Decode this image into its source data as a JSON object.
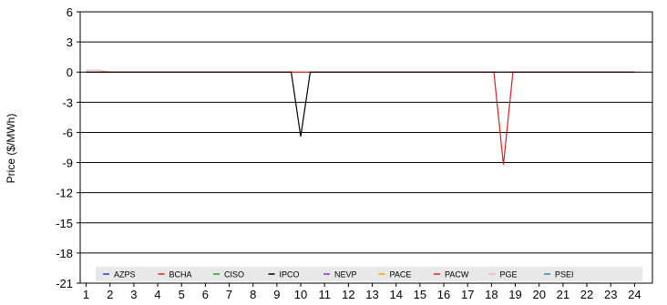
{
  "chart_data": {
    "type": "line",
    "title": "",
    "xlabel": "",
    "ylabel": "Price ($/MWh)",
    "x": [
      1,
      2,
      3,
      4,
      5,
      6,
      7,
      8,
      9,
      10,
      11,
      12,
      13,
      14,
      15,
      16,
      17,
      18,
      19,
      20,
      21,
      22,
      23,
      24
    ],
    "xticks": [
      "1",
      "2",
      "3",
      "4",
      "5",
      "6",
      "7",
      "8",
      "9",
      "10",
      "11",
      "12",
      "13",
      "14",
      "15",
      "16",
      "17",
      "18",
      "19",
      "20",
      "21",
      "22",
      "23",
      "24"
    ],
    "ylim": [
      -21,
      6
    ],
    "yticks": [
      6,
      3,
      0,
      -3,
      -6,
      -9,
      -12,
      -15,
      -18,
      -21
    ],
    "ytick_labels": [
      "6",
      "3",
      "0",
      "-3",
      "-6",
      "-9",
      "-12",
      "-15",
      "-18",
      "-21"
    ],
    "grid": "horizontal",
    "legend_position": "bottom",
    "series": [
      {
        "name": "AZPS",
        "color": "#1f3fd1",
        "points": [
          [
            1,
            0
          ],
          [
            24,
            0
          ]
        ]
      },
      {
        "name": "BCHA",
        "color": "#e02020",
        "points": [
          [
            1,
            0
          ],
          [
            24,
            0
          ]
        ]
      },
      {
        "name": "CISO",
        "color": "#2e9a2e",
        "points": [
          [
            1,
            0
          ],
          [
            24,
            0
          ]
        ]
      },
      {
        "name": "IPCO",
        "color": "#000000",
        "points": [
          [
            1,
            0
          ],
          [
            9.6,
            0
          ],
          [
            10,
            -6.4
          ],
          [
            10.4,
            0
          ],
          [
            24,
            0
          ]
        ]
      },
      {
        "name": "NEVP",
        "color": "#8a2be2",
        "points": [
          [
            1,
            0
          ],
          [
            24,
            0
          ]
        ]
      },
      {
        "name": "PACE",
        "color": "#f0a500",
        "points": [
          [
            1,
            0
          ],
          [
            24,
            0
          ]
        ]
      },
      {
        "name": "PACW",
        "color": "#d62020",
        "points": [
          [
            1,
            0
          ],
          [
            18.1,
            0
          ],
          [
            18.5,
            -9.2
          ],
          [
            18.9,
            0
          ],
          [
            24,
            0
          ]
        ]
      },
      {
        "name": "PGE",
        "color": "#f4b6c2",
        "points": [
          [
            1,
            0.2
          ],
          [
            1.5,
            0.2
          ],
          [
            2,
            0
          ],
          [
            24,
            0
          ]
        ]
      },
      {
        "name": "PSEI",
        "color": "#2a8ca8",
        "points": [
          [
            1,
            0
          ],
          [
            24,
            0
          ]
        ]
      }
    ]
  }
}
